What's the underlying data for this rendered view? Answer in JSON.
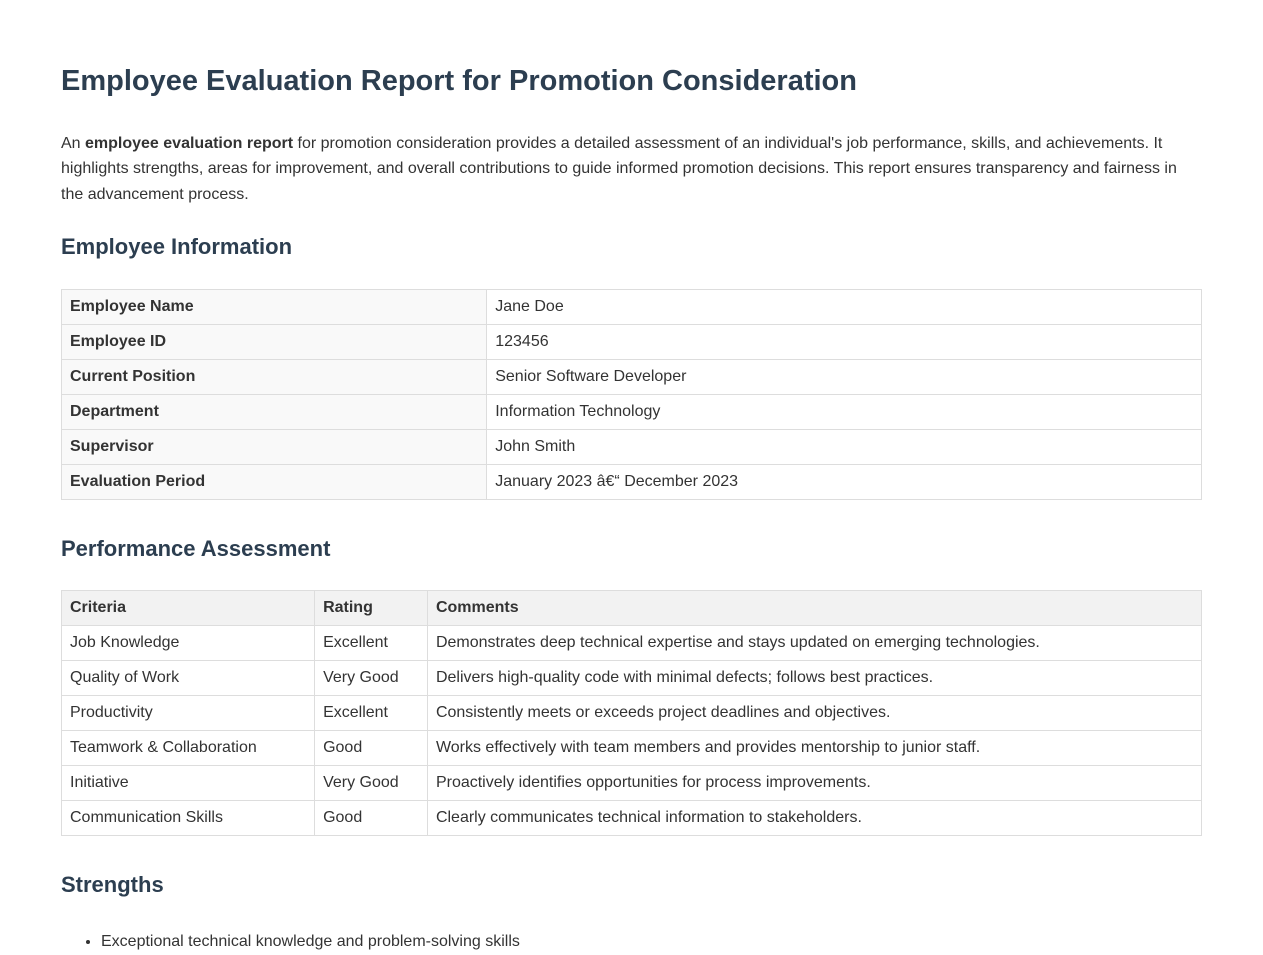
{
  "page": {
    "title": "Employee Evaluation Report for Promotion Consideration"
  },
  "intro": {
    "prefix": "An ",
    "bold": "employee evaluation report",
    "suffix": " for promotion consideration provides a detailed assessment of an individual's job performance, skills, and achievements. It highlights strengths, areas for improvement, and overall contributions to guide informed promotion decisions. This report ensures transparency and fairness in the advancement process."
  },
  "employee_info": {
    "heading": "Employee Information",
    "rows": [
      {
        "label": "Employee Name",
        "value": "Jane Doe"
      },
      {
        "label": "Employee ID",
        "value": "123456"
      },
      {
        "label": "Current Position",
        "value": "Senior Software Developer"
      },
      {
        "label": "Department",
        "value": "Information Technology"
      },
      {
        "label": "Supervisor",
        "value": "John Smith"
      },
      {
        "label": "Evaluation Period",
        "value": "January 2023 â€“ December 2023"
      }
    ]
  },
  "performance": {
    "heading": "Performance Assessment",
    "columns": [
      "Criteria",
      "Rating",
      "Comments"
    ],
    "rows": [
      {
        "criteria": "Job Knowledge",
        "rating": "Excellent",
        "comments": "Demonstrates deep technical expertise and stays updated on emerging technologies."
      },
      {
        "criteria": "Quality of Work",
        "rating": "Very Good",
        "comments": "Delivers high-quality code with minimal defects; follows best practices."
      },
      {
        "criteria": "Productivity",
        "rating": "Excellent",
        "comments": "Consistently meets or exceeds project deadlines and objectives."
      },
      {
        "criteria": "Teamwork & Collaboration",
        "rating": "Good",
        "comments": "Works effectively with team members and provides mentorship to junior staff."
      },
      {
        "criteria": "Initiative",
        "rating": "Very Good",
        "comments": "Proactively identifies opportunities for process improvements."
      },
      {
        "criteria": "Communication Skills",
        "rating": "Good",
        "comments": "Clearly communicates technical information to stakeholders."
      }
    ]
  },
  "strengths": {
    "heading": "Strengths",
    "items": [
      "Exceptional technical knowledge and problem-solving skills"
    ]
  },
  "colors": {
    "heading_text": "#2c3e50",
    "body_text": "#333333",
    "table_border": "#dddddd",
    "label_cell_bg": "#f9f9f9",
    "header_row_bg": "#f2f2f2"
  }
}
